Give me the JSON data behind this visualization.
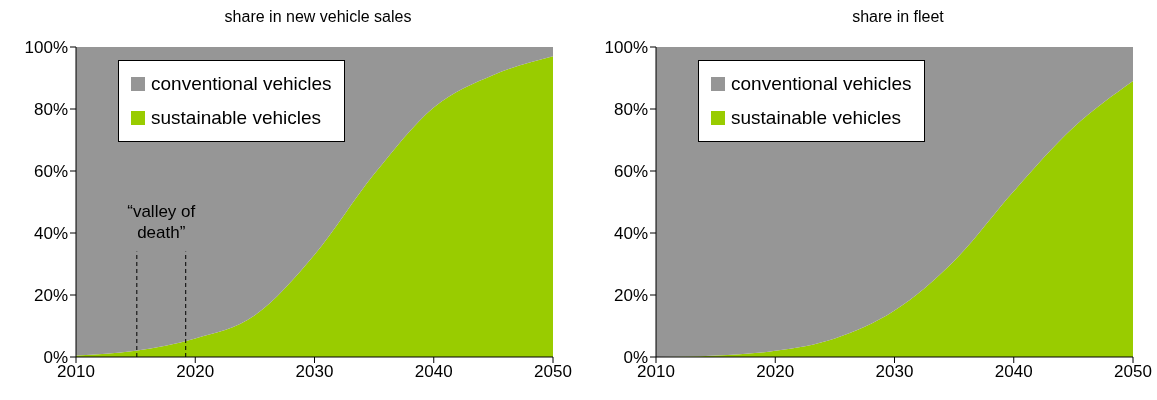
{
  "chart_data": [
    {
      "type": "area",
      "stacked": true,
      "title": "share in new vehicle sales",
      "x": [
        2010,
        2015,
        2020,
        2025,
        2030,
        2035,
        2040,
        2045,
        2050
      ],
      "series": [
        {
          "name": "sustainable vehicles",
          "color": "#99cc00",
          "values": [
            0.5,
            2,
            6,
            13.5,
            33,
            59,
            80.5,
            91,
            97
          ]
        },
        {
          "name": "conventional vehicles",
          "color": "#969696",
          "values": [
            99.5,
            98,
            94,
            86.5,
            67,
            41,
            19.5,
            9,
            3
          ]
        }
      ],
      "xlim": [
        2010,
        2050
      ],
      "xticks": [
        2010,
        2020,
        2030,
        2040,
        2050
      ],
      "ylim": [
        0,
        100
      ],
      "yticks": [
        {
          "value": 0,
          "label": "0%"
        },
        {
          "value": 20,
          "label": "20%"
        },
        {
          "value": 40,
          "label": "40%"
        },
        {
          "value": 60,
          "label": "60%"
        },
        {
          "value": 80,
          "label": "80%"
        },
        {
          "value": 100,
          "label": "100%"
        }
      ],
      "legend": "top left",
      "ref_lines": [
        {
          "axis": "x",
          "value": 2015.1,
          "line_style": "dashed",
          "color": "#000000"
        },
        {
          "axis": "x",
          "value": 2019.2,
          "line_style": "dashed",
          "color": "#000000"
        }
      ],
      "annotations": [
        "“valley of death”"
      ]
    },
    {
      "type": "area",
      "stacked": true,
      "title": "share in fleet",
      "x": [
        2010,
        2015,
        2020,
        2025,
        2030,
        2035,
        2040,
        2045,
        2050
      ],
      "series": [
        {
          "name": "sustainable vehicles",
          "color": "#99cc00",
          "values": [
            0,
            0.5,
            2,
            6,
            15,
            31,
            53.5,
            74,
            89
          ]
        },
        {
          "name": "conventional vehicles",
          "color": "#969696",
          "values": [
            100,
            99.5,
            98,
            94,
            85,
            69,
            46.5,
            26,
            11
          ]
        }
      ],
      "xlim": [
        2010,
        2050
      ],
      "xticks": [
        2010,
        2020,
        2030,
        2040,
        2050
      ],
      "ylim": [
        0,
        100
      ],
      "yticks": [
        {
          "value": 0,
          "label": "0%"
        },
        {
          "value": 20,
          "label": "20%"
        },
        {
          "value": 40,
          "label": "40%"
        },
        {
          "value": 60,
          "label": "60%"
        },
        {
          "value": 80,
          "label": "80%"
        },
        {
          "value": 100,
          "label": "100%"
        }
      ],
      "legend": "top left"
    }
  ]
}
